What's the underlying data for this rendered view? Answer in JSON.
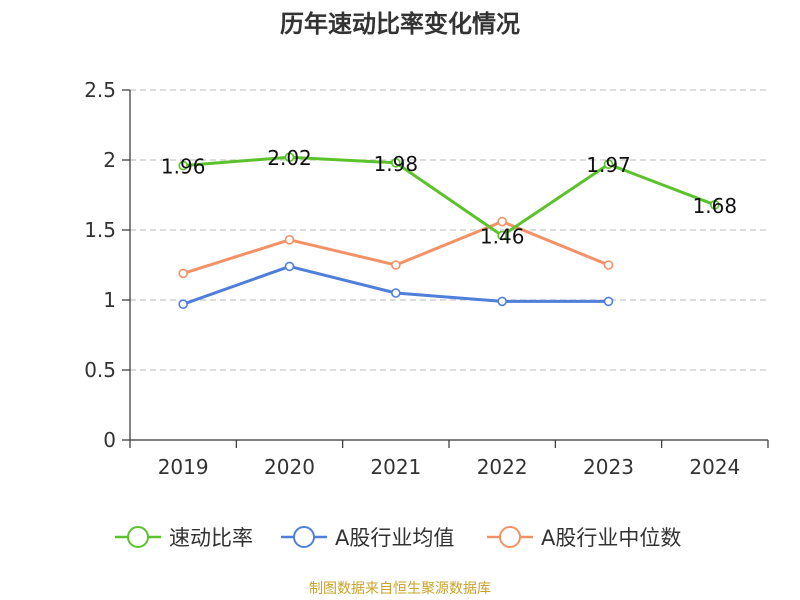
{
  "chart_data": {
    "type": "line",
    "title": "历年速动比率变化情况",
    "categories": [
      "2019",
      "2020",
      "2021",
      "2022",
      "2023",
      "2024"
    ],
    "ylim": [
      0,
      2.5
    ],
    "yticks": [
      "0",
      "0.5",
      "1",
      "1.5",
      "2",
      "2.5"
    ],
    "grid": true,
    "legend_position": "bottom",
    "series": [
      {
        "name": "速动比率",
        "color": "#5cc22c",
        "values": [
          1.96,
          2.02,
          1.98,
          1.46,
          1.97,
          1.68
        ],
        "labels": [
          "1.96",
          "2.02",
          "1.98",
          "1.46",
          "1.97",
          "1.68"
        ]
      },
      {
        "name": "A股行业均值",
        "color": "#4f7fdb",
        "values": [
          0.97,
          1.24,
          1.05,
          0.99,
          0.99,
          null
        ]
      },
      {
        "name": "A股行业中位数",
        "color": "#f49166",
        "values": [
          1.19,
          1.43,
          1.25,
          1.56,
          1.25,
          null
        ]
      }
    ],
    "source": "制图数据来自恒生聚源数据库"
  }
}
